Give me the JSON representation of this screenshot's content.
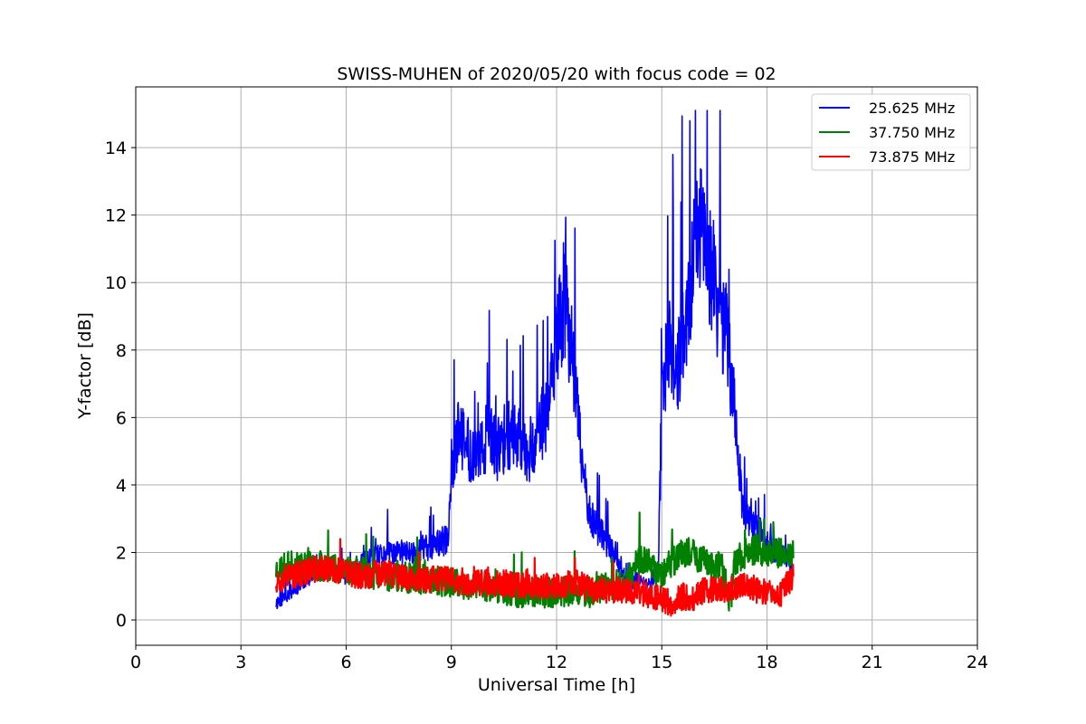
{
  "chart_data": {
    "type": "line",
    "title": "SWISS-MUHEN of 2020/05/20 with focus code = 02",
    "xlabel": "Universal Time [h]",
    "ylabel": "Y-factor [dB]",
    "xlim": [
      0,
      24
    ],
    "ylim": [
      -0.75,
      15.8
    ],
    "xticks": [
      0,
      3,
      6,
      9,
      12,
      15,
      18,
      21,
      24
    ],
    "yticks": [
      0,
      2,
      4,
      6,
      8,
      10,
      12,
      14
    ],
    "grid": true,
    "legend_position": "top-right",
    "series": [
      {
        "name": "25.625 MHz",
        "color": "#0000ff",
        "x": [
          4.0,
          4.5,
          5.0,
          5.5,
          6.0,
          6.5,
          7.0,
          7.5,
          8.0,
          8.5,
          8.9,
          9.0,
          9.2,
          9.5,
          9.8,
          10.0,
          10.3,
          10.6,
          10.9,
          11.2,
          11.5,
          11.8,
          12.0,
          12.2,
          12.4,
          12.6,
          12.8,
          13.0,
          13.3,
          13.6,
          13.8,
          14.0,
          14.3,
          14.6,
          14.9,
          15.0,
          15.2,
          15.5,
          15.7,
          15.9,
          16.1,
          16.3,
          16.5,
          16.7,
          16.9,
          17.1,
          17.3,
          17.5,
          17.8,
          18.0,
          18.3,
          18.6,
          18.75
        ],
        "y": [
          0.5,
          0.9,
          1.3,
          1.5,
          1.3,
          1.7,
          1.9,
          2.0,
          2.0,
          2.2,
          2.4,
          4.5,
          5.5,
          5.0,
          4.8,
          5.5,
          5.0,
          5.5,
          5.5,
          5.0,
          5.5,
          6.5,
          8.0,
          9.5,
          8.5,
          6.0,
          4.0,
          3.0,
          2.5,
          2.0,
          1.5,
          1.0,
          1.2,
          1.0,
          1.5,
          6.5,
          8.0,
          7.5,
          9.0,
          10.5,
          11.5,
          11.0,
          10.0,
          9.0,
          8.0,
          6.0,
          3.5,
          2.8,
          2.5,
          2.2,
          2.0,
          1.8,
          1.5
        ]
      },
      {
        "name": "37.750 MHz",
        "color": "#008000",
        "x": [
          4.0,
          4.5,
          5.0,
          5.5,
          6.0,
          6.5,
          7.0,
          7.5,
          8.0,
          8.5,
          9.0,
          9.5,
          10.0,
          10.5,
          11.0,
          11.5,
          12.0,
          12.5,
          13.0,
          13.5,
          14.0,
          14.3,
          14.6,
          14.9,
          15.2,
          15.5,
          15.8,
          16.1,
          16.4,
          16.7,
          16.95,
          17.1,
          17.4,
          17.7,
          18.0,
          18.4,
          18.75
        ],
        "y": [
          1.5,
          1.6,
          1.6,
          1.6,
          1.5,
          1.4,
          1.3,
          1.3,
          1.2,
          1.2,
          1.1,
          1.0,
          1.0,
          0.9,
          0.8,
          0.8,
          0.8,
          0.9,
          0.8,
          1.0,
          1.1,
          1.8,
          1.8,
          1.3,
          1.6,
          1.9,
          2.0,
          1.8,
          1.7,
          1.6,
          0.5,
          1.8,
          2.0,
          2.1,
          2.0,
          2.0,
          2.0
        ]
      },
      {
        "name": "73.875 MHz",
        "color": "#ff0000",
        "x": [
          4.0,
          4.5,
          5.0,
          5.5,
          6.0,
          6.5,
          7.0,
          7.5,
          8.0,
          8.5,
          9.0,
          9.5,
          10.0,
          10.5,
          11.0,
          11.5,
          12.0,
          12.5,
          13.0,
          13.5,
          14.0,
          14.5,
          15.0,
          15.3,
          15.6,
          15.9,
          16.2,
          16.5,
          16.8,
          17.1,
          17.4,
          17.7,
          18.0,
          18.4,
          18.75
        ],
        "y": [
          1.2,
          1.3,
          1.5,
          1.5,
          1.4,
          1.3,
          1.4,
          1.3,
          1.2,
          1.2,
          1.2,
          1.1,
          1.1,
          1.1,
          1.0,
          1.0,
          1.0,
          1.1,
          0.9,
          0.9,
          0.9,
          0.8,
          0.6,
          0.5,
          0.7,
          0.6,
          0.9,
          0.9,
          0.9,
          1.0,
          1.0,
          0.9,
          0.8,
          0.8,
          1.3
        ]
      }
    ]
  }
}
